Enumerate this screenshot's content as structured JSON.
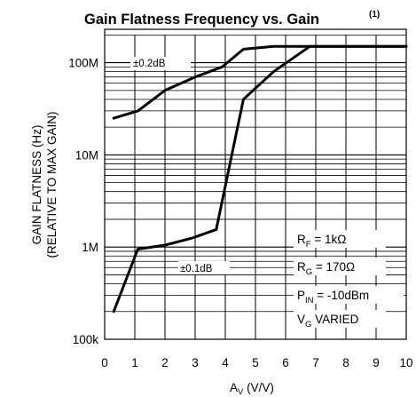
{
  "chart_data": {
    "type": "line",
    "title": "Gain Flatness Frequency vs. Gain",
    "title_note": "(1)",
    "xlabel": {
      "main": "A",
      "sub": "V",
      "unit": " (V/V)"
    },
    "ylabel": [
      "GAIN FLATNESS (Hz)",
      "(RELATIVE TO MAX GAIN)"
    ],
    "xlim": [
      0,
      10
    ],
    "ylim": [
      100000,
      200000000
    ],
    "y_scale": "log",
    "x_ticks": [
      "0",
      "1",
      "2",
      "3",
      "4",
      "5",
      "6",
      "7",
      "8",
      "9",
      "10"
    ],
    "y_ticks": [
      {
        "value": 100000,
        "label": "100k"
      },
      {
        "value": 1000000,
        "label": "1M"
      },
      {
        "value": 10000000,
        "label": "10M"
      },
      {
        "value": 100000000,
        "label": "100M"
      }
    ],
    "grid": true,
    "series": [
      {
        "name": "±0.2dB",
        "x": [
          0.3,
          1.1,
          2.0,
          3.0,
          3.9,
          4.6,
          5.6,
          6.8,
          10.0
        ],
        "y": [
          25000000,
          30000000,
          50000000,
          70000000,
          90000000,
          140000000,
          150000000,
          150000000,
          150000000
        ]
      },
      {
        "name": "±0.1dB",
        "x": [
          0.3,
          1.1,
          2.0,
          2.9,
          3.7,
          4.6,
          5.6,
          6.8,
          10.0
        ],
        "y": [
          200000,
          950000,
          1050000,
          1250000,
          1550000,
          40000000,
          80000000,
          150000000,
          150000000
        ]
      }
    ],
    "conditions": [
      {
        "main": "R",
        "sub": "F",
        "rest": " = 1kΩ"
      },
      {
        "main": "R",
        "sub": "G",
        "rest": " = 170Ω"
      },
      {
        "main": "P",
        "sub": "IN",
        "rest": " = -10dBm"
      },
      {
        "main": "V",
        "sub": "G",
        "rest": " VARIED"
      }
    ]
  }
}
